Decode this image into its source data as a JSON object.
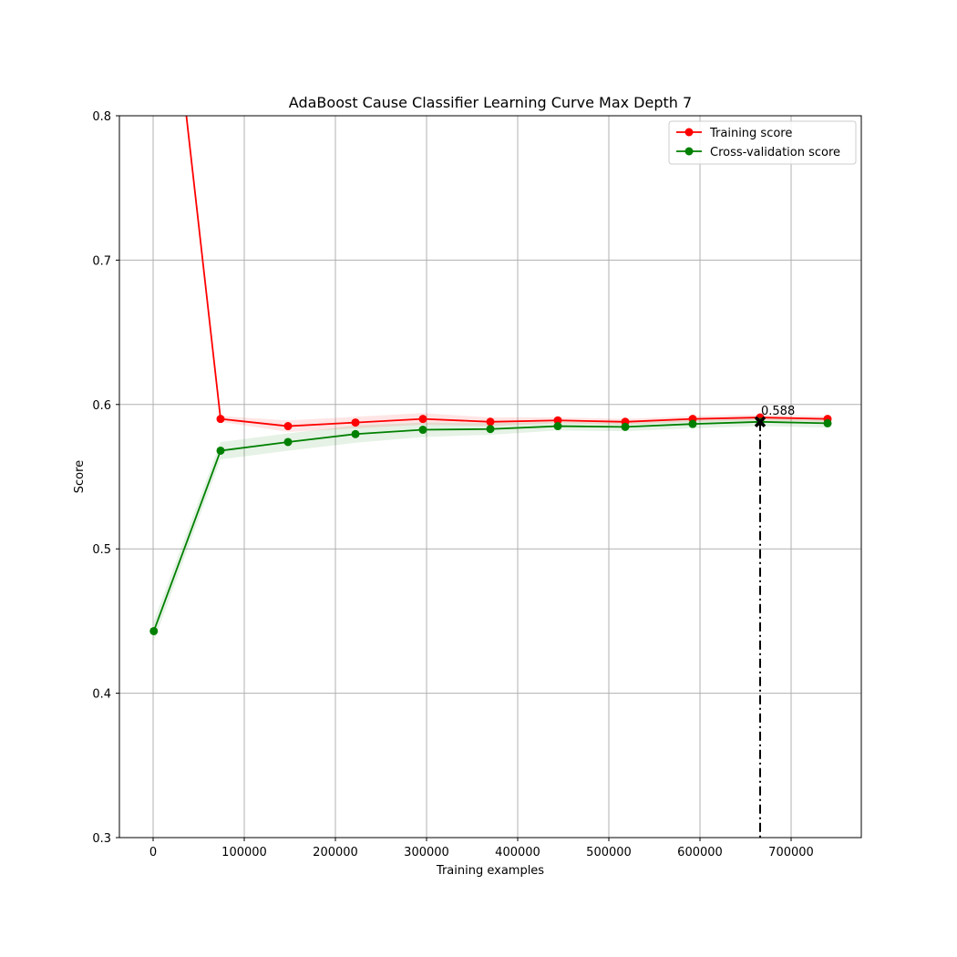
{
  "chart_data": {
    "type": "line",
    "title": "AdaBoost Cause Classifier Learning Curve Max Depth 7",
    "xlabel": "Training examples",
    "ylabel": "Score",
    "xlim": [
      -37000,
      777000
    ],
    "ylim": [
      0.3,
      0.8
    ],
    "xticks": [
      0,
      100000,
      200000,
      300000,
      400000,
      500000,
      600000,
      700000
    ],
    "xtick_labels": [
      "0",
      "100000",
      "200000",
      "300000",
      "400000",
      "500000",
      "600000",
      "700000"
    ],
    "yticks": [
      0.3,
      0.4,
      0.5,
      0.6,
      0.7,
      0.8
    ],
    "ytick_labels": [
      "0.3",
      "0.4",
      "0.5",
      "0.6",
      "0.7",
      "0.8"
    ],
    "grid": true,
    "legend_position": "top-right",
    "x": [
      740,
      74000,
      148000,
      222000,
      296000,
      370000,
      444000,
      518000,
      592000,
      666000,
      740000
    ],
    "series": [
      {
        "name": "Training score",
        "color": "#ff0000",
        "band_color": "#ff0000",
        "values": [
          1.0,
          0.59,
          0.585,
          0.5875,
          0.59,
          0.588,
          0.589,
          0.588,
          0.59,
          0.591,
          0.59
        ],
        "std": [
          0.0,
          0.002,
          0.004,
          0.004,
          0.004,
          0.003,
          0.002,
          0.002,
          0.002,
          0.002,
          0.002
        ]
      },
      {
        "name": "Cross-validation score",
        "color": "#008000",
        "band_color": "#008000",
        "values": [
          0.443,
          0.568,
          0.574,
          0.5795,
          0.5825,
          0.583,
          0.585,
          0.5845,
          0.5865,
          0.588,
          0.587
        ],
        "std": [
          0.007,
          0.006,
          0.006,
          0.006,
          0.005,
          0.004,
          0.003,
          0.003,
          0.003,
          0.003,
          0.003
        ]
      }
    ],
    "annotation": {
      "x": 666000,
      "y": 0.588,
      "label": "0.588",
      "marker": "x",
      "line_style": "dash-dot",
      "color": "#000000"
    }
  }
}
